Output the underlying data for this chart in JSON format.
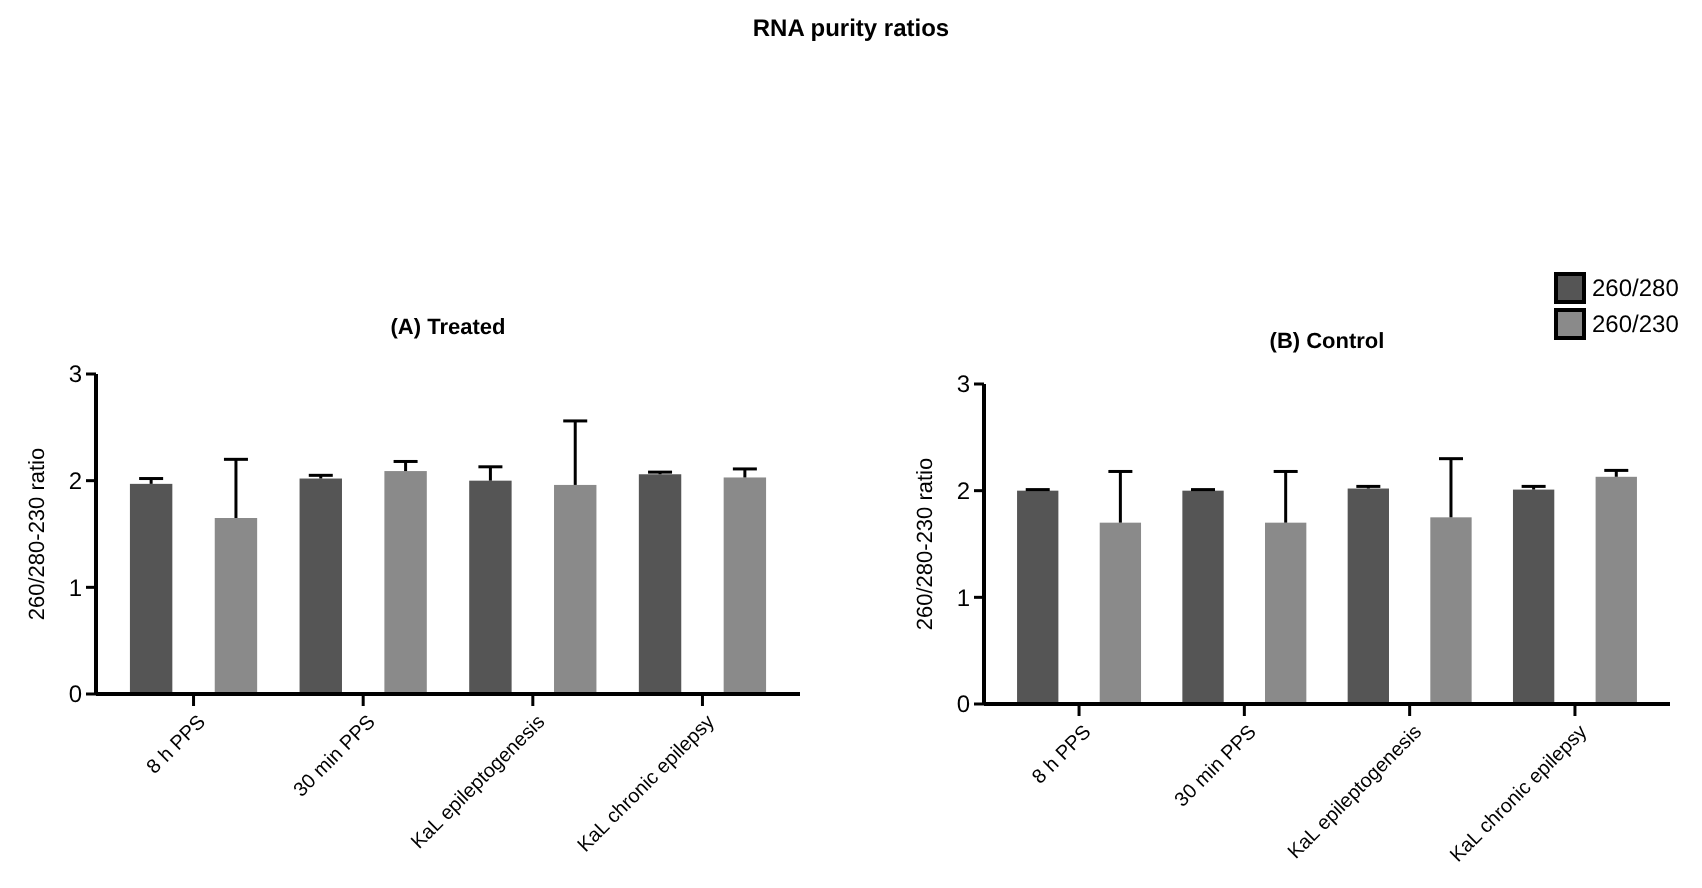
{
  "chart_data": [
    {
      "type": "bar",
      "title": "(A) Treated",
      "annotations": [
        "RNA purity ratios"
      ],
      "ylabel": "260/280-230 ratio",
      "categories": [
        "8 h PPS",
        "30 min PPS",
        "KaL epileptogenesis",
        "KaL chronic epilepsy"
      ],
      "series": [
        {
          "color": "#555555",
          "values": [
            1.97,
            2.02,
            2.0,
            2.06
          ],
          "errors": [
            [
              1.97,
              2.02
            ],
            [
              2.02,
              2.05
            ],
            [
              2.0,
              2.13
            ],
            [
              2.06,
              2.08
            ]
          ]
        },
        {
          "color": "#8a8a8a",
          "values": [
            1.65,
            2.09,
            1.96,
            2.03
          ],
          "errors": [
            [
              1.65,
              2.2
            ],
            [
              2.09,
              2.18
            ],
            [
              1.96,
              2.56
            ],
            [
              2.03,
              2.11
            ]
          ]
        }
      ],
      "ylim": [
        0,
        3
      ],
      "yticks": [
        0,
        1,
        2,
        3
      ],
      "grid": false,
      "legend": false
    },
    {
      "type": "bar",
      "title": "(B) Control",
      "ylabel": "260/280-230 ratio",
      "categories": [
        "8 h PPS",
        "30 min PPS",
        "KaL epileptogenesis",
        "KaL chronic epilepsy"
      ],
      "series": [
        {
          "name": "260/280",
          "color": "#555555",
          "values": [
            2.0,
            2.0,
            2.02,
            2.01
          ],
          "errors": [
            [
              2.0,
              2.01
            ],
            [
              2.0,
              2.01
            ],
            [
              2.02,
              2.04
            ],
            [
              2.01,
              2.04
            ]
          ]
        },
        {
          "name": "260/230",
          "color": "#8a8a8a",
          "values": [
            1.7,
            1.7,
            1.75,
            2.13
          ],
          "errors": [
            [
              1.7,
              2.18
            ],
            [
              1.7,
              2.18
            ],
            [
              1.75,
              2.3
            ],
            [
              2.13,
              2.19
            ]
          ]
        }
      ],
      "ylim": [
        0,
        3
      ],
      "yticks": [
        0,
        1,
        2,
        3
      ],
      "grid": false,
      "legend": "top right"
    }
  ]
}
